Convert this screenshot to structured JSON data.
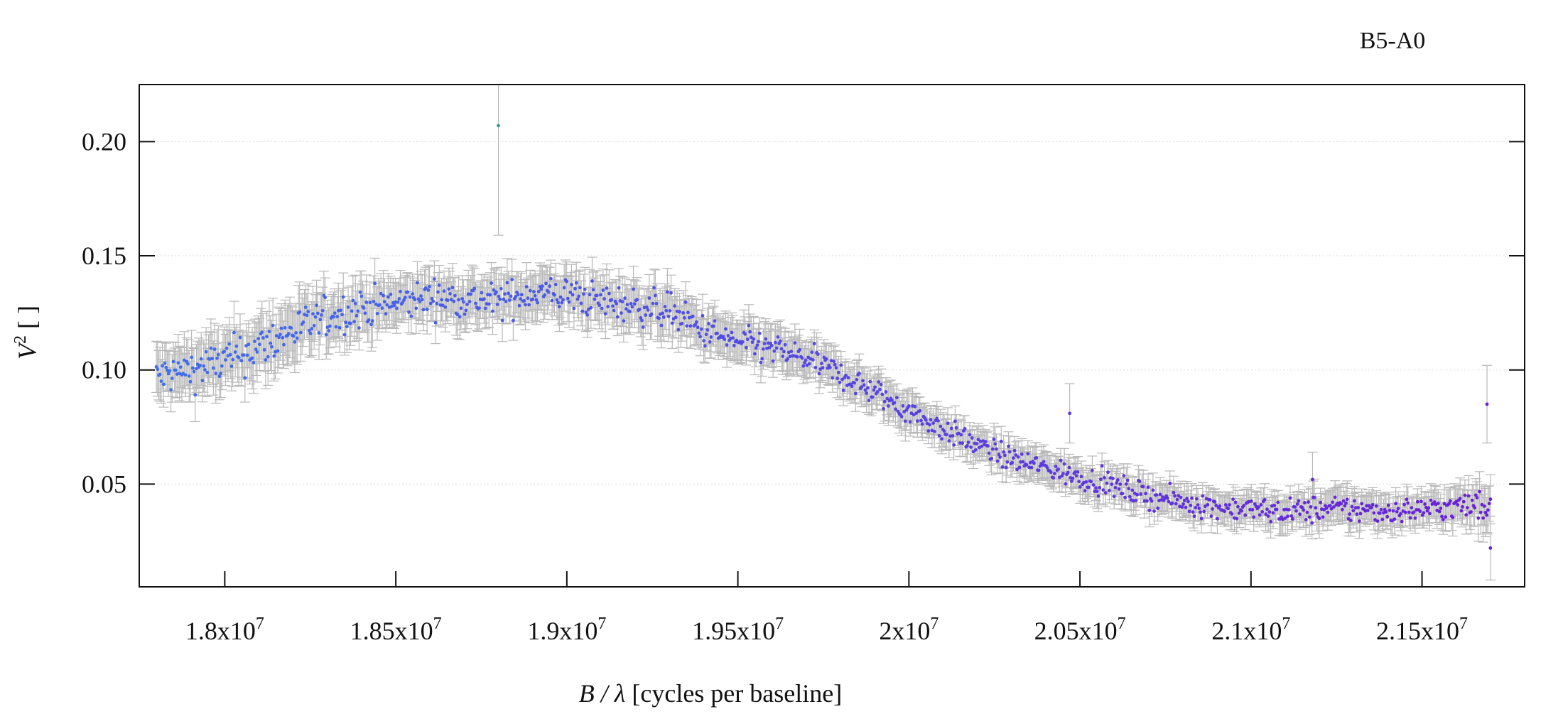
{
  "chart_data": {
    "type": "scatter",
    "title": "B5-A0",
    "xlabel_italic": "B / λ",
    "xlabel_rest": " [cycles per baseline]",
    "ylabel_italic": "V",
    "ylabel_sup": "2",
    "ylabel_rest": " [ ]",
    "xlim": [
      17750000,
      21800000
    ],
    "ylim": [
      0.005,
      0.225
    ],
    "grid": {
      "y": true,
      "x": false
    },
    "x_ticks": [
      {
        "value": 18000000,
        "mantissa": "1.8x10",
        "exp": "7"
      },
      {
        "value": 18500000,
        "mantissa": "1.85x10",
        "exp": "7"
      },
      {
        "value": 19000000,
        "mantissa": "1.9x10",
        "exp": "7"
      },
      {
        "value": 19500000,
        "mantissa": "1.95x10",
        "exp": "7"
      },
      {
        "value": 20000000,
        "mantissa": "2x10",
        "exp": "7"
      },
      {
        "value": 20500000,
        "mantissa": "2.05x10",
        "exp": "7"
      },
      {
        "value": 21000000,
        "mantissa": "2.1x10",
        "exp": "7"
      },
      {
        "value": 21500000,
        "mantissa": "2.15x10",
        "exp": "7"
      }
    ],
    "y_ticks": [
      {
        "value": 0.05,
        "label": "0.05"
      },
      {
        "value": 0.1,
        "label": "0.10"
      },
      {
        "value": 0.15,
        "label": "0.15"
      },
      {
        "value": 0.2,
        "label": "0.20"
      }
    ],
    "colors": {
      "start": "#3f6ff0",
      "end": "#6a1fd8",
      "errorbar": "#b8b8b8",
      "outlier": "#2a9aa8"
    },
    "series": [
      {
        "x": [
          17800000,
          17900000,
          18000000,
          18100000,
          18200000,
          18300000,
          18400000,
          18500000,
          18600000,
          18700000,
          18800000,
          18900000,
          19000000,
          19100000,
          19200000,
          19300000,
          19400000,
          19500000,
          19600000,
          19700000,
          19800000,
          19900000,
          20000000,
          20100000,
          20200000,
          20300000,
          20400000,
          20500000,
          20600000,
          20700000,
          20800000,
          20900000,
          21000000,
          21100000,
          21200000,
          21300000,
          21400000,
          21500000,
          21600000,
          21700000
        ],
        "y": [
          0.097,
          0.1,
          0.104,
          0.11,
          0.117,
          0.123,
          0.127,
          0.129,
          0.132,
          0.131,
          0.13,
          0.134,
          0.133,
          0.13,
          0.128,
          0.126,
          0.117,
          0.112,
          0.109,
          0.105,
          0.098,
          0.09,
          0.082,
          0.074,
          0.067,
          0.061,
          0.057,
          0.053,
          0.049,
          0.045,
          0.042,
          0.04,
          0.039,
          0.038,
          0.039,
          0.039,
          0.038,
          0.039,
          0.04,
          0.041
        ],
        "err": [
          0.01,
          0.01,
          0.011,
          0.011,
          0.011,
          0.01,
          0.01,
          0.009,
          0.009,
          0.009,
          0.009,
          0.009,
          0.009,
          0.009,
          0.009,
          0.009,
          0.008,
          0.008,
          0.008,
          0.007,
          0.007,
          0.007,
          0.007,
          0.006,
          0.006,
          0.006,
          0.006,
          0.006,
          0.006,
          0.006,
          0.006,
          0.006,
          0.006,
          0.006,
          0.007,
          0.007,
          0.006,
          0.006,
          0.007,
          0.009
        ]
      }
    ],
    "outliers": [
      {
        "x": 18800000,
        "y": 0.207,
        "err": 0.048
      },
      {
        "x": 20470000,
        "y": 0.081,
        "err": 0.013
      },
      {
        "x": 21180000,
        "y": 0.052,
        "err": 0.012
      },
      {
        "x": 21690000,
        "y": 0.085,
        "err": 0.017
      },
      {
        "x": 21700000,
        "y": 0.022,
        "err": 0.014
      }
    ]
  }
}
